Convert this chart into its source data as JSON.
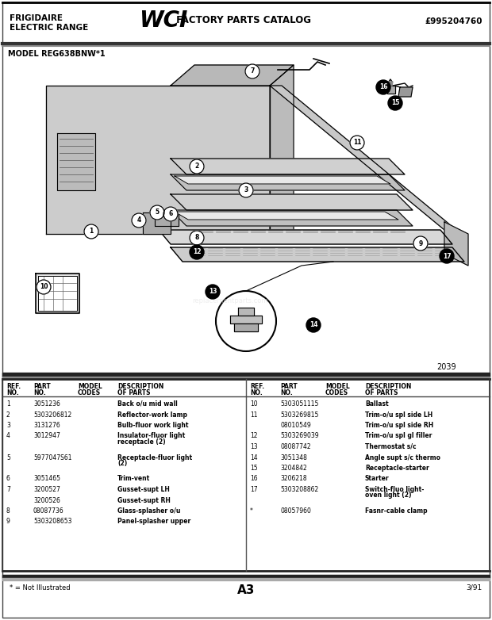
{
  "title_left_line1": "FRIGIDAIRE",
  "title_left_line2": "ELECTRIC RANGE",
  "title_right": "£995204760",
  "model": "MODEL REG638BNW*1",
  "diagram_number": "2039",
  "page_code": "A3",
  "date": "3/91",
  "footnote": "* = Not Illustrated",
  "bg_color": "#f5f5f0",
  "parts_left": [
    [
      "1",
      "3051236",
      "",
      "Back o/u mid wall"
    ],
    [
      "2",
      "5303206812",
      "",
      "Reflector-work lamp"
    ],
    [
      "3",
      "3131276",
      "",
      "Bulb-fluor work light"
    ],
    [
      "4",
      "3012947",
      "",
      "Insulator-fluor light\nreceptacle (2)"
    ],
    [
      "5",
      "5977047S61",
      "",
      "Receptacle-fluor light\n(2)"
    ],
    [
      "6",
      "3051465",
      "",
      "Trim-vent"
    ],
    [
      "7",
      "3200527",
      "",
      "Gusset-supt LH"
    ],
    [
      "",
      "3200526",
      "",
      "Gusset-supt RH"
    ],
    [
      "8",
      "08087736",
      "",
      "Glass-splasher o/u"
    ],
    [
      "9",
      "5303208653",
      "",
      "Panel-splasher upper"
    ]
  ],
  "parts_right": [
    [
      "10",
      "5303051115",
      "",
      "Ballast"
    ],
    [
      "11",
      "5303269815",
      "",
      "Trim-o/u spl side LH"
    ],
    [
      "",
      "08010549",
      "",
      "Trim-o/u spl side RH"
    ],
    [
      "12",
      "5303269039",
      "",
      "Trim-o/u spl gl filler"
    ],
    [
      "13",
      "08087742",
      "",
      "Thermostat s/c"
    ],
    [
      "14",
      "3051348",
      "",
      "Angle supt s/c thermo"
    ],
    [
      "15",
      "3204842",
      "",
      "Receptacle-starter"
    ],
    [
      "16",
      "3206218",
      "",
      "Starter"
    ],
    [
      "17",
      "5303208862",
      "",
      "Switch-fluo light-\noven light (2)"
    ],
    [
      "*",
      "08057960",
      "",
      "Fasnr-cable clamp"
    ]
  ]
}
